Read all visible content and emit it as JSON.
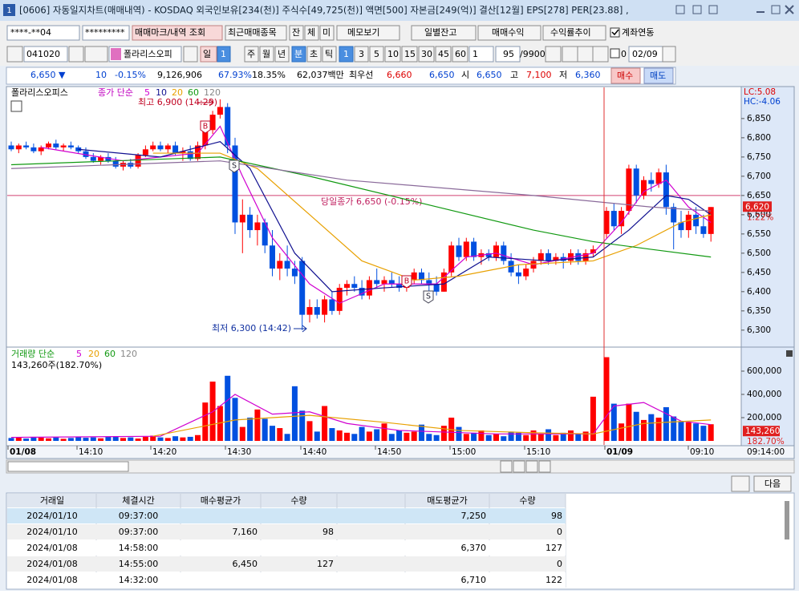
{
  "window": {
    "title": "[0606] 자동일지차트(매매내역) - KOSDAQ 외국인보유[234(천)] 주식수[49,725(천)] 액면[500] 자본금[249(억)] 결산[12월] EPS[278] PER[23.88] ,",
    "number": "1"
  },
  "toolbar1": {
    "account": "****-**04",
    "password": "*********",
    "query": "매매마크/내역 조회",
    "recent": "최근매매종목",
    "b1": "잔",
    "b2": "체",
    "b3": "미",
    "memo": "메모보기",
    "daily": "일별잔고",
    "profit": "매매수익",
    "rate": "수익률추이",
    "link": "계좌연동"
  },
  "toolbar2": {
    "code": "041020",
    "name": "폴라리스오피",
    "period": "일",
    "period_n": "1",
    "w": "주",
    "m": "월",
    "y": "년",
    "min": "분",
    "sec": "초",
    "tick": "틱",
    "n1": "1",
    "n3": "3",
    "n5": "5",
    "n10": "10",
    "n15": "15",
    "n30": "30",
    "n45": "45",
    "n60": "60",
    "sel": "1",
    "count": "95",
    "total": "/9900",
    "zero": "0",
    "date": "02/09"
  },
  "quote": {
    "price": "6,650 ▼",
    "change": "10",
    "rate": "-0.15%",
    "volume": "9,126,906",
    "vol_rate": "67.93%",
    "turnover": "18.35%",
    "amount": "62,037백만",
    "best": "최우선",
    "ask": "6,660",
    "bid": "6,650",
    "open_l": "시",
    "open": "6,650",
    "high_l": "고",
    "high": "7,100",
    "low_l": "저",
    "low": "6,360",
    "buy": "매수",
    "sell": "매도"
  },
  "chart_data": {
    "type": "candlestick",
    "legend": {
      "name": "폴라리스오피스",
      "ma": "종가 단순",
      "p5": "5",
      "p10": "10",
      "p20": "20",
      "p60": "60",
      "p120": "120"
    },
    "annotations": {
      "high": "최고 6,900 (14:29)",
      "low": "최저 6,300 (14:42)",
      "base": "당일종가 6,650 (-0.15%)",
      "lc": "LC:5.08",
      "hc": "HC:-4.06",
      "cur_rate": "1.22%",
      "buy_mark": "B",
      "sell_mark": "S"
    },
    "base_value": 6650,
    "current": {
      "value": 6620,
      "label": "6,620"
    },
    "ylim": [
      6258,
      6931
    ],
    "yticks": [
      {
        "value": 6300,
        "label": "6,300"
      },
      {
        "value": 6350,
        "label": "6,350"
      },
      {
        "value": 6400,
        "label": "6,400"
      },
      {
        "value": 6450,
        "label": "6,450"
      },
      {
        "value": 6500,
        "label": "6,500"
      },
      {
        "value": 6550,
        "label": "6,550"
      },
      {
        "value": 6600,
        "label": "6,600"
      },
      {
        "value": 6650,
        "label": "6,650"
      },
      {
        "value": 6700,
        "label": "6,700"
      },
      {
        "value": 6750,
        "label": "6,750"
      },
      {
        "value": 6800,
        "label": "6,800"
      },
      {
        "value": 6850,
        "label": "6,850"
      }
    ],
    "up_color": "#ff0000",
    "down_color": "#0050e0",
    "day1_candles": [
      [
        6780,
        6790,
        6765,
        6770
      ],
      [
        6770,
        6785,
        6760,
        6780
      ],
      [
        6780,
        6790,
        6770,
        6775
      ],
      [
        6775,
        6785,
        6760,
        6765
      ],
      [
        6765,
        6780,
        6755,
        6775
      ],
      [
        6775,
        6790,
        6770,
        6785
      ],
      [
        6785,
        6795,
        6770,
        6775
      ],
      [
        6775,
        6785,
        6765,
        6780
      ],
      [
        6780,
        6790,
        6770,
        6775
      ],
      [
        6775,
        6780,
        6760,
        6765
      ],
      [
        6765,
        6775,
        6745,
        6750
      ],
      [
        6750,
        6760,
        6735,
        6740
      ],
      [
        6740,
        6755,
        6730,
        6750
      ],
      [
        6750,
        6760,
        6735,
        6740
      ],
      [
        6740,
        6750,
        6720,
        6725
      ],
      [
        6725,
        6740,
        6715,
        6735
      ],
      [
        6735,
        6745,
        6720,
        6725
      ],
      [
        6725,
        6760,
        6720,
        6755
      ],
      [
        6755,
        6780,
        6750,
        6770
      ],
      [
        6770,
        6790,
        6765,
        6780
      ],
      [
        6780,
        6790,
        6765,
        6770
      ],
      [
        6770,
        6785,
        6760,
        6780
      ],
      [
        6780,
        6790,
        6755,
        6760
      ],
      [
        6760,
        6775,
        6740,
        6765
      ],
      [
        6765,
        6780,
        6740,
        6745
      ],
      [
        6745,
        6790,
        6740,
        6780
      ],
      [
        6780,
        6830,
        6770,
        6820
      ],
      [
        6820,
        6870,
        6810,
        6860
      ],
      [
        6860,
        6900,
        6850,
        6880
      ],
      [
        6880,
        6890,
        6760,
        6780
      ],
      [
        6780,
        6800,
        6550,
        6580
      ],
      [
        6580,
        6640,
        6500,
        6600
      ],
      [
        6600,
        6620,
        6540,
        6560
      ],
      [
        6560,
        6600,
        6520,
        6580
      ],
      [
        6580,
        6590,
        6500,
        6520
      ],
      [
        6520,
        6560,
        6440,
        6460
      ],
      [
        6460,
        6500,
        6430,
        6480
      ],
      [
        6480,
        6520,
        6440,
        6460
      ],
      [
        6460,
        6480,
        6420,
        6440
      ],
      [
        6480,
        6490,
        6300,
        6340
      ],
      [
        6340,
        6380,
        6320,
        6360
      ],
      [
        6360,
        6380,
        6330,
        6340
      ],
      [
        6340,
        6390,
        6320,
        6380
      ],
      [
        6380,
        6400,
        6340,
        6350
      ],
      [
        6350,
        6420,
        6340,
        6410
      ],
      [
        6410,
        6430,
        6390,
        6420
      ],
      [
        6420,
        6440,
        6400,
        6410
      ],
      [
        6410,
        6430,
        6380,
        6390
      ],
      [
        6390,
        6440,
        6380,
        6430
      ],
      [
        6430,
        6460,
        6410,
        6420
      ],
      [
        6420,
        6440,
        6400,
        6430
      ],
      [
        6430,
        6450,
        6410,
        6420
      ],
      [
        6420,
        6440,
        6400,
        6410
      ],
      [
        6410,
        6440,
        6400,
        6430
      ],
      [
        6430,
        6460,
        6420,
        6450
      ],
      [
        6450,
        6460,
        6420,
        6430
      ],
      [
        6430,
        6450,
        6400,
        6420
      ],
      [
        6420,
        6440,
        6390,
        6400
      ],
      [
        6400,
        6460,
        6400,
        6450
      ],
      [
        6450,
        6530,
        6440,
        6520
      ],
      [
        6520,
        6540,
        6480,
        6490
      ],
      [
        6490,
        6540,
        6480,
        6530
      ],
      [
        6530,
        6540,
        6480,
        6490
      ],
      [
        6490,
        6510,
        6470,
        6500
      ],
      [
        6500,
        6510,
        6480,
        6490
      ],
      [
        6490,
        6530,
        6480,
        6520
      ],
      [
        6520,
        6530,
        6470,
        6480
      ],
      [
        6480,
        6500,
        6440,
        6450
      ],
      [
        6450,
        6470,
        6420,
        6440
      ],
      [
        6440,
        6470,
        6430,
        6460
      ],
      [
        6460,
        6490,
        6450,
        6480
      ],
      [
        6480,
        6510,
        6470,
        6500
      ],
      [
        6500,
        6510,
        6470,
        6480
      ],
      [
        6480,
        6500,
        6470,
        6490
      ],
      [
        6490,
        6500,
        6460,
        6480
      ],
      [
        6480,
        6510,
        6470,
        6500
      ],
      [
        6500,
        6510,
        6470,
        6480
      ],
      [
        6480,
        6510,
        6470,
        6500
      ],
      [
        6500,
        6520,
        6490,
        6510
      ]
    ],
    "day2_candles": [
      [
        6550,
        6620,
        6540,
        6610
      ],
      [
        6610,
        6630,
        6560,
        6570
      ],
      [
        6570,
        6620,
        6550,
        6610
      ],
      [
        6610,
        6730,
        6600,
        6720
      ],
      [
        6720,
        6730,
        6630,
        6650
      ],
      [
        6650,
        6700,
        6640,
        6690
      ],
      [
        6690,
        6710,
        6660,
        6680
      ],
      [
        6680,
        6720,
        6670,
        6710
      ],
      [
        6710,
        6730,
        6600,
        6620
      ],
      [
        6620,
        6630,
        6510,
        6580
      ],
      [
        6580,
        6610,
        6540,
        6560
      ],
      [
        6560,
        6610,
        6540,
        6600
      ],
      [
        6600,
        6620,
        6550,
        6570
      ],
      [
        6570,
        6600,
        6540,
        6550
      ],
      [
        6550,
        6620,
        6530,
        6620
      ]
    ],
    "ma_lines": [
      {
        "name": "5",
        "color": "#d000d0",
        "points": [
          [
            4,
            6775
          ],
          [
            15,
            6740
          ],
          [
            25,
            6760
          ],
          [
            28,
            6830
          ],
          [
            31,
            6700
          ],
          [
            35,
            6540
          ],
          [
            40,
            6420
          ],
          [
            44,
            6370
          ],
          [
            50,
            6420
          ],
          [
            57,
            6420
          ],
          [
            61,
            6490
          ],
          [
            65,
            6500
          ],
          [
            70,
            6470
          ],
          [
            78,
            6500
          ],
          [
            82,
            6580
          ],
          [
            85,
            6660
          ],
          [
            88,
            6690
          ],
          [
            91,
            6620
          ],
          [
            94,
            6580
          ]
        ]
      },
      {
        "name": "10",
        "color": "#101090",
        "points": [
          [
            9,
            6770
          ],
          [
            20,
            6750
          ],
          [
            28,
            6790
          ],
          [
            32,
            6720
          ],
          [
            38,
            6500
          ],
          [
            43,
            6400
          ],
          [
            50,
            6410
          ],
          [
            58,
            6420
          ],
          [
            64,
            6490
          ],
          [
            72,
            6480
          ],
          [
            78,
            6490
          ],
          [
            83,
            6560
          ],
          [
            88,
            6650
          ],
          [
            91,
            6640
          ],
          [
            94,
            6600
          ]
        ]
      },
      {
        "name": "20",
        "color": "#e8a000",
        "points": [
          [
            19,
            6760
          ],
          [
            28,
            6760
          ],
          [
            33,
            6720
          ],
          [
            40,
            6600
          ],
          [
            47,
            6480
          ],
          [
            54,
            6430
          ],
          [
            60,
            6440
          ],
          [
            68,
            6470
          ],
          [
            78,
            6480
          ],
          [
            84,
            6520
          ],
          [
            90,
            6580
          ],
          [
            94,
            6600
          ]
        ]
      },
      {
        "name": "60",
        "color": "#119911",
        "points": [
          [
            0,
            6730
          ],
          [
            28,
            6750
          ],
          [
            40,
            6700
          ],
          [
            55,
            6630
          ],
          [
            70,
            6560
          ],
          [
            78,
            6530
          ],
          [
            86,
            6510
          ],
          [
            94,
            6490
          ]
        ]
      },
      {
        "name": "120",
        "color": "#8a6a9a",
        "points": [
          [
            0,
            6720
          ],
          [
            28,
            6740
          ],
          [
            45,
            6690
          ],
          [
            70,
            6650
          ],
          [
            86,
            6620
          ],
          [
            94,
            6610
          ]
        ]
      }
    ],
    "volume": {
      "legend": {
        "name": "거래량 단순",
        "p5": "5",
        "p20": "20",
        "p60": "60",
        "p120": "120",
        "current": "143,260주(182.70%)",
        "cur_rate": "182.70%"
      },
      "current": {
        "value": 143260,
        "label": "143,260"
      },
      "ylim": [
        0,
        786000
      ],
      "yticks": [
        {
          "value": 200000,
          "label": "200,000"
        },
        {
          "value": 400000,
          "label": "400,000"
        },
        {
          "value": 600000,
          "label": "600,000"
        }
      ],
      "day1": [
        25000,
        30000,
        20000,
        35000,
        28000,
        22000,
        30000,
        18000,
        25000,
        32000,
        27000,
        30000,
        22000,
        35000,
        40000,
        25000,
        30000,
        20000,
        35000,
        45000,
        30000,
        25000,
        40000,
        30000,
        35000,
        50000,
        330000,
        510000,
        300000,
        560000,
        370000,
        120000,
        200000,
        270000,
        190000,
        130000,
        110000,
        60000,
        470000,
        260000,
        170000,
        80000,
        300000,
        110000,
        90000,
        70000,
        60000,
        120000,
        80000,
        100000,
        150000,
        60000,
        90000,
        70000,
        80000,
        140000,
        60000,
        50000,
        130000,
        200000,
        120000,
        60000,
        70000,
        90000,
        50000,
        60000,
        40000,
        80000,
        70000,
        50000,
        90000,
        60000,
        100000,
        50000,
        70000,
        90000,
        60000,
        80000,
        380000
      ],
      "day2": [
        720000,
        320000,
        150000,
        320000,
        250000,
        180000,
        230000,
        200000,
        290000,
        210000,
        170000,
        160000,
        150000,
        130000,
        143260
      ],
      "ma_lines": [
        {
          "name": "5",
          "color": "#d000d0",
          "points": [
            [
              0,
              30000
            ],
            [
              20,
              40000
            ],
            [
              27,
              250000
            ],
            [
              30,
              400000
            ],
            [
              35,
              230000
            ],
            [
              40,
              250000
            ],
            [
              45,
              150000
            ],
            [
              52,
              90000
            ],
            [
              65,
              60000
            ],
            [
              78,
              60000
            ],
            [
              81,
              300000
            ],
            [
              85,
              330000
            ],
            [
              90,
              170000
            ],
            [
              94,
              140000
            ]
          ]
        },
        {
          "name": "20",
          "color": "#e8a000",
          "points": [
            [
              19,
              40000
            ],
            [
              30,
              180000
            ],
            [
              40,
              220000
            ],
            [
              50,
              160000
            ],
            [
              60,
              90000
            ],
            [
              70,
              70000
            ],
            [
              78,
              60000
            ],
            [
              85,
              150000
            ],
            [
              94,
              180000
            ]
          ]
        }
      ]
    },
    "time_labels": [
      "01/08",
      "14:10",
      "14:20",
      "14:30",
      "14:40",
      "14:50",
      "15:00",
      "15:10",
      "01/09",
      "09:10",
      "09:14:00"
    ]
  },
  "table": {
    "next": "다음",
    "headers": [
      "거래일",
      "체결시간",
      "매수평균가",
      "수량",
      "매도평균가",
      "수량"
    ],
    "rows": [
      {
        "date": "2024/01/10",
        "time": "09:37:00",
        "sell_price": "7,250",
        "sell_qty": "98"
      },
      {
        "date": "2024/01/10",
        "time": "09:37:00",
        "buy_price": "7,160",
        "buy_qty": "98",
        "sell_qty": "0"
      },
      {
        "date": "2024/01/08",
        "time": "14:58:00",
        "sell_price": "6,370",
        "sell_qty": "127"
      },
      {
        "date": "2024/01/08",
        "time": "14:55:00",
        "buy_price": "6,450",
        "buy_qty": "127",
        "sell_qty": "0"
      },
      {
        "date": "2024/01/08",
        "time": "14:32:00",
        "sell_price": "6,710",
        "sell_qty": "122"
      }
    ]
  }
}
